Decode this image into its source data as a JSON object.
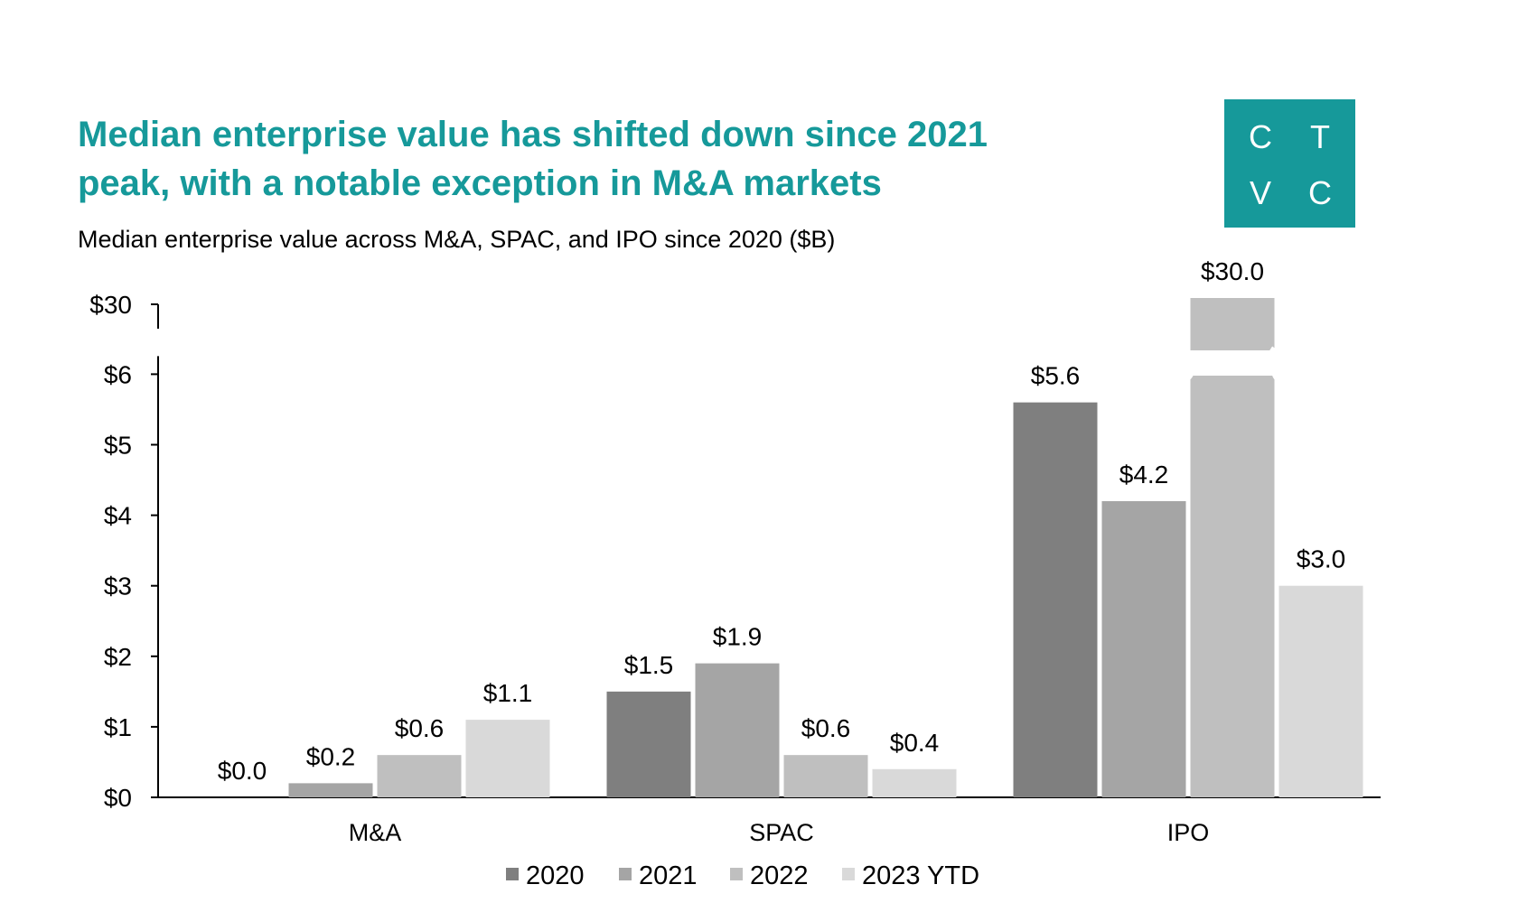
{
  "title": "Median enterprise value has shifted down since 2021\npeak, with a notable exception in M&A markets",
  "subtitle": "Median enterprise value across M&A, SPAC, and IPO since 2020 ($B)",
  "logo": {
    "letters": [
      "C",
      "T",
      "V",
      "C"
    ],
    "color": "#16999a"
  },
  "chart_data": {
    "type": "bar",
    "categories": [
      "M&A",
      "SPAC",
      "IPO"
    ],
    "series": [
      {
        "name": "2020",
        "color": "#7f7f7f",
        "values": [
          0.0,
          1.5,
          5.6
        ],
        "labels": [
          "$0.0",
          "$1.5",
          "$5.6"
        ]
      },
      {
        "name": "2021",
        "color": "#a5a5a5",
        "values": [
          0.2,
          1.9,
          4.2
        ],
        "labels": [
          "$0.2",
          "$1.9",
          "$4.2"
        ]
      },
      {
        "name": "2022",
        "color": "#bfbfbf",
        "values": [
          0.6,
          0.6,
          30.0
        ],
        "labels": [
          "$0.6",
          "$0.6",
          "$30.0"
        ]
      },
      {
        "name": "2023 YTD",
        "color": "#d9d9d9",
        "values": [
          1.1,
          0.4,
          3.0
        ],
        "labels": [
          "$1.1",
          "$0.4",
          "$3.0"
        ]
      }
    ],
    "y_ticks": [
      "$0",
      "$1",
      "$2",
      "$3",
      "$4",
      "$5",
      "$6",
      "$30"
    ],
    "ylim": [
      0,
      6
    ],
    "axis_break": {
      "upper_tick": 30
    },
    "grid": false,
    "legend_position": "bottom",
    "xlabel": "",
    "ylabel": ""
  }
}
